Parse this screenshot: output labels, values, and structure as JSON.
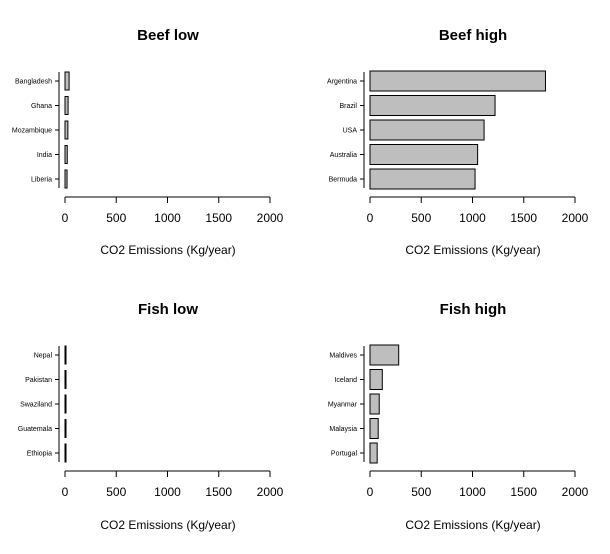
{
  "chart_data": [
    {
      "type": "bar",
      "orientation": "horizontal",
      "title": "Beef low",
      "xlabel": "CO2 Emissions (Kg/year)",
      "categories": [
        "Bangladesh",
        "Ghana",
        "Mozambique",
        "India",
        "Liberia"
      ],
      "values": [
        40,
        30,
        28,
        22,
        20
      ],
      "xlim": [
        0,
        2000
      ],
      "xticks": [
        0,
        500,
        1000,
        1500,
        2000
      ]
    },
    {
      "type": "bar",
      "orientation": "horizontal",
      "title": "Beef high",
      "xlabel": "CO2 Emissions (Kg/year)",
      "categories": [
        "Argentina",
        "Brazil",
        "USA",
        "Australia",
        "Bermuda"
      ],
      "values": [
        1712,
        1220,
        1113,
        1050,
        1025
      ],
      "xlim": [
        0,
        2000
      ],
      "xticks": [
        0,
        500,
        1000,
        1500,
        2000
      ]
    },
    {
      "type": "bar",
      "orientation": "horizontal",
      "title": "Fish low",
      "xlabel": "CO2 Emissions (Kg/year)",
      "categories": [
        "Nepal",
        "Pakistan",
        "Swaziland",
        "Guatemala",
        "Ethiopia"
      ],
      "values": [
        1,
        1,
        1,
        1,
        1
      ],
      "xlim": [
        0,
        2000
      ],
      "xticks": [
        0,
        500,
        1000,
        1500,
        2000
      ]
    },
    {
      "type": "bar",
      "orientation": "horizontal",
      "title": "Fish high",
      "xlabel": "CO2 Emissions (Kg/year)",
      "categories": [
        "Maldives",
        "Iceland",
        "Myanmar",
        "Malaysia",
        "Portugal"
      ],
      "values": [
        280,
        120,
        90,
        80,
        70
      ],
      "xlim": [
        0,
        2000
      ],
      "xticks": [
        0,
        500,
        1000,
        1500,
        2000
      ]
    }
  ]
}
